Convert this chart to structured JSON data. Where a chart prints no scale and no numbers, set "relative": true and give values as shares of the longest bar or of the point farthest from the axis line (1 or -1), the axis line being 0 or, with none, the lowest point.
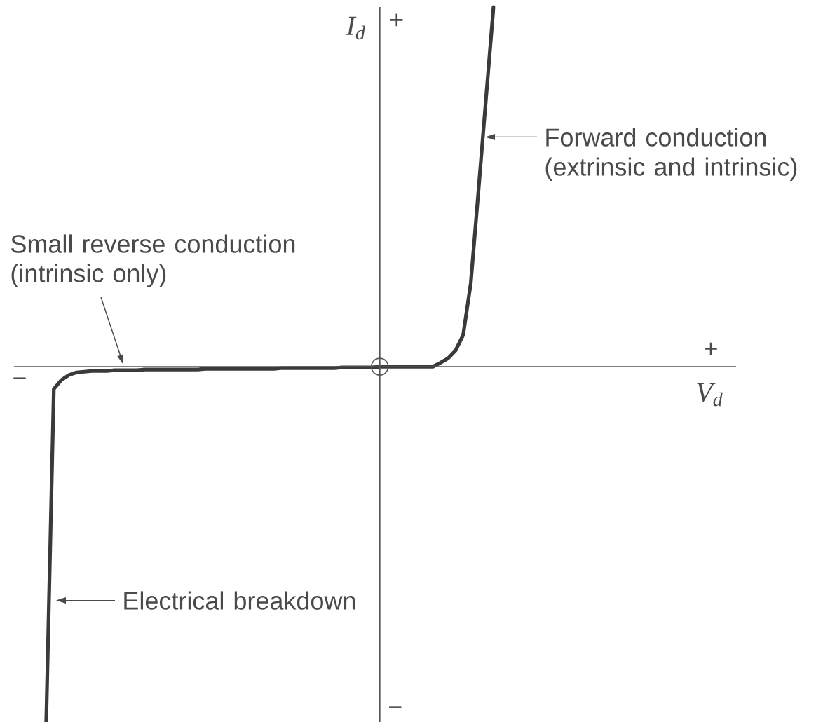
{
  "chart_data": {
    "type": "line",
    "relative": true,
    "ylabel": "I$_{d}$",
    "categories": [
      null,
      null,
      null,
      null,
      null,
      null,
      null,
      null,
      null,
      null,
      null,
      null,
      null,
      null,
      null,
      null,
      null,
      null,
      null,
      null,
      null,
      null,
      null,
      null,
      null,
      null,
      null,
      null,
      null,
      null,
      null,
      null,
      null,
      null,
      null,
      null,
      null,
      null,
      null,
      null,
      null,
      null,
      null,
      null,
      null,
      null,
      null,
      null,
      null,
      null,
      null,
      null,
      null,
      null,
      null,
      null,
      null,
      null,
      null,
      null
    ],
    "series": [
      {
        "color": "#3a3a3a",
        "values": [
          -0.988,
          -0.062,
          -0.037,
          -0.023,
          -0.016,
          -0.014,
          -0.012,
          -0.012,
          -0.012,
          -0.01,
          -0.01,
          -0.01,
          -0.01,
          -0.008,
          -0.008,
          -0.008,
          -0.008,
          -0.008,
          -0.008,
          -0.008,
          -0.008,
          -0.006,
          -0.006,
          -0.006,
          -0.006,
          -0.006,
          -0.006,
          -0.006,
          -0.006,
          -0.006,
          -0.006,
          -0.004,
          -0.004,
          -0.004,
          -0.004,
          -0.004,
          -0.004,
          -0.004,
          -0.004,
          -0.002,
          -0.002,
          -0.002,
          -0.002,
          -0.002,
          0,
          0,
          0,
          0,
          0,
          0,
          0,
          0,
          0.011,
          0.023,
          0.045,
          0.088,
          0.232,
          0.485,
          0.743,
          1
        ]
      }
    ],
    "annotations": [
      "+",
      "−",
      "+",
      "V$_{d}$",
      "−",
      "Forward conduction (extrinsic and intrinsic)",
      "Small reverse conduction (intrinsic only)",
      "Electrical breakdown"
    ]
  }
}
